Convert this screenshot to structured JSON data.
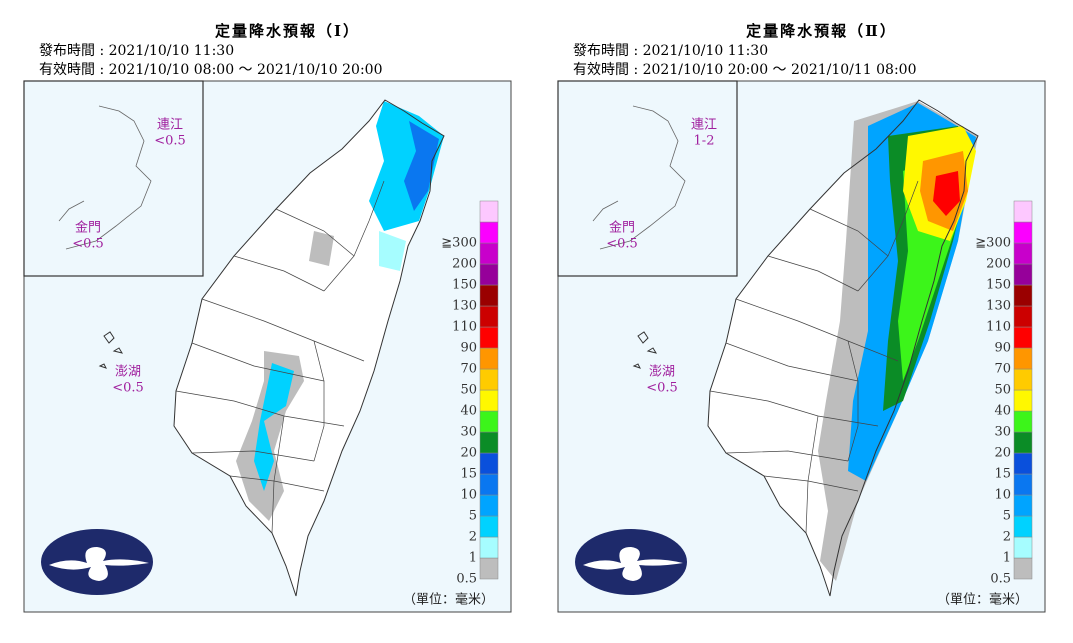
{
  "panels": [
    {
      "title": "定量降水預報（Ⅰ）",
      "issued": "發布時間 : 2021/10/10 11:30",
      "valid": "有效時間 : 2021/10/10 08:00 ～ 2021/10/10 20:00",
      "areas": [
        {
          "name": "連江",
          "amount": "<0.5"
        },
        {
          "name": "金門",
          "amount": "<0.5"
        },
        {
          "name": "澎湖",
          "amount": "<0.5"
        }
      ],
      "unit": "（單位：毫米）"
    },
    {
      "title": "定量降水預報（Ⅱ）",
      "issued": "發布時間 : 2021/10/10 11:30",
      "valid": "有效時間 : 2021/10/10 20:00 ～ 2021/10/11 08:00",
      "areas": [
        {
          "name": "連江",
          "amount": "1-2"
        },
        {
          "name": "金門",
          "amount": "<0.5"
        },
        {
          "name": "澎湖",
          "amount": "<0.5"
        }
      ],
      "unit": "（單位：毫米）"
    }
  ],
  "legend": [
    {
      "label": "0.5",
      "color": "#bdbdbd"
    },
    {
      "label": "1",
      "color": "#a6fdff"
    },
    {
      "label": "2",
      "color": "#00d2ff"
    },
    {
      "label": "5",
      "color": "#00a4ff"
    },
    {
      "label": "10",
      "color": "#0a77f0"
    },
    {
      "label": "15",
      "color": "#0a50dc"
    },
    {
      "label": "20",
      "color": "#0b8c26"
    },
    {
      "label": "30",
      "color": "#3cf51a"
    },
    {
      "label": "40",
      "color": "#fff800"
    },
    {
      "label": "50",
      "color": "#ffcb00"
    },
    {
      "label": "70",
      "color": "#ff9600"
    },
    {
      "label": "90",
      "color": "#ff0000"
    },
    {
      "label": "110",
      "color": "#cc0000"
    },
    {
      "label": "130",
      "color": "#9a0000"
    },
    {
      "label": "150",
      "color": "#96009a"
    },
    {
      "label": "200",
      "color": "#c800cb"
    },
    {
      "label": "≧300",
      "color": "#fb00ff"
    }
  ],
  "legend_top_color": "#fdc8ff"
}
